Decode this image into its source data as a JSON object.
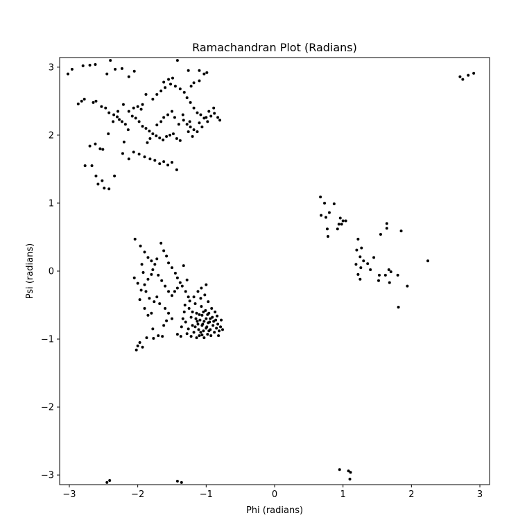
{
  "chart_data": {
    "type": "scatter",
    "title": "Ramachandran Plot (Radians)",
    "xlabel": "Phi (radians)",
    "ylabel": "Psi (radians)",
    "xlim": [
      -3.1416,
      3.1416
    ],
    "ylim": [
      -3.1416,
      3.1416
    ],
    "xticks": [
      -3,
      -2,
      -1,
      0,
      1,
      2,
      3
    ],
    "yticks": [
      -3,
      -2,
      -1,
      0,
      1,
      2,
      3
    ],
    "xtick_labels": [
      "−3",
      "−2",
      "−1",
      "0",
      "1",
      "2",
      "3"
    ],
    "ytick_labels": [
      "−3",
      "−2",
      "−1",
      "0",
      "1",
      "2",
      "3"
    ],
    "grid": false,
    "marker_color": "#000000",
    "series": [
      {
        "points": [
          [
            -3.02,
            2.9
          ],
          [
            -2.96,
            2.97
          ],
          [
            -2.8,
            3.02
          ],
          [
            -2.7,
            3.03
          ],
          [
            -2.62,
            3.04
          ],
          [
            -2.45,
            2.9
          ],
          [
            -2.4,
            3.1
          ],
          [
            -2.33,
            2.97
          ],
          [
            -2.23,
            2.98
          ],
          [
            -2.13,
            2.86
          ],
          [
            -2.05,
            2.94
          ],
          [
            -1.62,
            2.78
          ],
          [
            -1.55,
            2.82
          ],
          [
            -1.49,
            2.84
          ],
          [
            -1.42,
            3.1
          ],
          [
            -1.26,
            2.95
          ],
          [
            -1.1,
            2.95
          ],
          [
            -1.03,
            2.9
          ],
          [
            -0.99,
            2.92
          ],
          [
            -2.87,
            2.46
          ],
          [
            -2.82,
            2.5
          ],
          [
            -2.78,
            2.53
          ],
          [
            -2.65,
            2.48
          ],
          [
            -2.61,
            2.5
          ],
          [
            -2.53,
            2.42
          ],
          [
            -2.47,
            2.4
          ],
          [
            -2.42,
            2.33
          ],
          [
            -2.35,
            2.3
          ],
          [
            -2.3,
            2.27
          ],
          [
            -2.27,
            2.23
          ],
          [
            -2.23,
            2.2
          ],
          [
            -2.18,
            2.16
          ],
          [
            -2.13,
            2.35
          ],
          [
            -2.08,
            2.28
          ],
          [
            -2.03,
            2.25
          ],
          [
            -1.98,
            2.2
          ],
          [
            -1.93,
            2.13
          ],
          [
            -1.88,
            2.1
          ],
          [
            -1.83,
            2.06
          ],
          [
            -1.78,
            2.02
          ],
          [
            -1.73,
            1.99
          ],
          [
            -1.68,
            1.96
          ],
          [
            -1.63,
            1.93
          ],
          [
            -1.58,
            1.98
          ],
          [
            -1.53,
            2.0
          ],
          [
            -1.48,
            2.02
          ],
          [
            -1.43,
            1.95
          ],
          [
            -1.38,
            1.92
          ],
          [
            -1.78,
            2.53
          ],
          [
            -1.72,
            2.6
          ],
          [
            -1.66,
            2.65
          ],
          [
            -1.6,
            2.7
          ],
          [
            -1.52,
            2.75
          ],
          [
            -1.45,
            2.72
          ],
          [
            -1.38,
            2.68
          ],
          [
            -1.32,
            2.63
          ],
          [
            -1.28,
            2.55
          ],
          [
            -1.23,
            2.48
          ],
          [
            -1.18,
            2.4
          ],
          [
            -1.13,
            2.33
          ],
          [
            -1.08,
            2.3
          ],
          [
            -1.03,
            2.25
          ],
          [
            -0.98,
            2.2
          ],
          [
            -0.93,
            2.28
          ],
          [
            -0.88,
            2.32
          ],
          [
            -0.83,
            2.26
          ],
          [
            -0.8,
            2.22
          ],
          [
            -1.33,
            2.22
          ],
          [
            -1.28,
            2.16
          ],
          [
            -1.23,
            2.12
          ],
          [
            -1.18,
            2.08
          ],
          [
            -1.13,
            2.05
          ],
          [
            -1.18,
            2.77
          ],
          [
            -1.1,
            2.8
          ],
          [
            -1.22,
            2.72
          ],
          [
            -1.88,
            2.6
          ],
          [
            -1.93,
            2.45
          ],
          [
            -1.95,
            2.38
          ],
          [
            -2.0,
            2.42
          ],
          [
            -2.06,
            2.4
          ],
          [
            -2.21,
            2.45
          ],
          [
            -2.29,
            2.35
          ],
          [
            -2.36,
            2.2
          ],
          [
            -2.43,
            2.02
          ],
          [
            -2.2,
            1.9
          ],
          [
            -2.14,
            2.08
          ],
          [
            -1.86,
            1.89
          ],
          [
            -1.82,
            1.95
          ],
          [
            -1.72,
            2.15
          ],
          [
            -1.66,
            2.2
          ],
          [
            -1.62,
            2.26
          ],
          [
            -1.56,
            2.3
          ],
          [
            -1.5,
            2.35
          ],
          [
            -1.46,
            2.26
          ],
          [
            -1.4,
            2.16
          ],
          [
            -1.26,
            2.05
          ],
          [
            -1.2,
            1.98
          ],
          [
            -1.34,
            2.3
          ],
          [
            -1.24,
            2.2
          ],
          [
            -1.1,
            2.18
          ],
          [
            -1.06,
            2.12
          ],
          [
            -1.0,
            2.26
          ],
          [
            -0.96,
            2.35
          ],
          [
            -0.89,
            2.4
          ],
          [
            -2.7,
            1.84
          ],
          [
            -2.62,
            1.87
          ],
          [
            -2.55,
            1.8
          ],
          [
            -2.51,
            1.79
          ],
          [
            -2.22,
            1.73
          ],
          [
            -2.13,
            1.65
          ],
          [
            -2.06,
            1.75
          ],
          [
            -1.98,
            1.72
          ],
          [
            -1.9,
            1.68
          ],
          [
            -1.82,
            1.65
          ],
          [
            -1.75,
            1.63
          ],
          [
            -1.68,
            1.58
          ],
          [
            -1.62,
            1.61
          ],
          [
            -1.56,
            1.56
          ],
          [
            -1.5,
            1.6
          ],
          [
            -1.43,
            1.49
          ],
          [
            -2.77,
            1.55
          ],
          [
            -2.67,
            1.55
          ],
          [
            -2.61,
            1.4
          ],
          [
            -2.58,
            1.28
          ],
          [
            -2.52,
            1.33
          ],
          [
            -2.49,
            1.22
          ],
          [
            -2.42,
            1.21
          ],
          [
            -2.34,
            1.4
          ],
          [
            -2.04,
            0.47
          ],
          [
            -1.96,
            0.37
          ],
          [
            -1.9,
            0.28
          ],
          [
            -1.85,
            0.2
          ],
          [
            -1.8,
            0.15
          ],
          [
            -1.75,
            0.1
          ],
          [
            -1.72,
            0.18
          ],
          [
            -1.66,
            0.41
          ],
          [
            -1.62,
            0.3
          ],
          [
            -1.58,
            0.22
          ],
          [
            -1.55,
            0.12
          ],
          [
            -1.5,
            0.05
          ],
          [
            -1.45,
            -0.03
          ],
          [
            -1.42,
            -0.1
          ],
          [
            -1.38,
            -0.17
          ],
          [
            -1.33,
            0.08
          ],
          [
            -1.28,
            -0.13
          ],
          [
            -2.05,
            -0.1
          ],
          [
            -2.0,
            -0.18
          ],
          [
            -1.95,
            -0.28
          ],
          [
            -1.9,
            -0.2
          ],
          [
            -1.85,
            -0.12
          ],
          [
            -1.8,
            -0.05
          ],
          [
            -1.78,
            0.02
          ],
          [
            -1.7,
            -0.06
          ],
          [
            -1.65,
            -0.14
          ],
          [
            -1.6,
            -0.22
          ],
          [
            -1.55,
            -0.3
          ],
          [
            -1.5,
            -0.36
          ],
          [
            -1.46,
            -0.3
          ],
          [
            -1.42,
            -0.25
          ],
          [
            -1.35,
            -0.22
          ],
          [
            -1.3,
            -0.3
          ],
          [
            -1.26,
            -0.38
          ],
          [
            -1.94,
            0.1
          ],
          [
            -1.92,
            -0.02
          ],
          [
            -1.88,
            -0.3
          ],
          [
            -1.83,
            -0.4
          ],
          [
            -1.76,
            -0.45
          ],
          [
            -1.72,
            -0.38
          ],
          [
            -1.68,
            -0.48
          ],
          [
            -1.6,
            -0.55
          ],
          [
            -1.55,
            -0.62
          ],
          [
            -1.5,
            -0.7
          ],
          [
            -1.97,
            -0.42
          ],
          [
            -1.9,
            -0.55
          ],
          [
            -1.85,
            -0.65
          ],
          [
            -1.8,
            -0.62
          ],
          [
            -1.7,
            -0.95
          ],
          [
            -1.64,
            -0.96
          ],
          [
            -1.58,
            -0.73
          ],
          [
            -1.87,
            -0.98
          ],
          [
            -1.77,
            -0.99
          ],
          [
            -1.97,
            -1.05
          ],
          [
            -1.93,
            -1.12
          ],
          [
            -2.0,
            -1.1
          ],
          [
            -2.02,
            -1.16
          ],
          [
            -1.42,
            -0.93
          ],
          [
            -1.37,
            -0.96
          ],
          [
            -1.78,
            -0.85
          ],
          [
            -1.62,
            -0.8
          ],
          [
            -1.32,
            -0.6
          ],
          [
            -1.3,
            -0.75
          ],
          [
            -1.28,
            -0.92
          ],
          [
            -1.25,
            -0.55
          ],
          [
            -1.22,
            -0.68
          ],
          [
            -1.2,
            -0.8
          ],
          [
            -1.18,
            -0.9
          ],
          [
            -1.16,
            -0.48
          ],
          [
            -1.14,
            -0.62
          ],
          [
            -1.13,
            -0.74
          ],
          [
            -1.11,
            -0.86
          ],
          [
            -1.1,
            -0.95
          ],
          [
            -1.08,
            -0.4
          ],
          [
            -1.07,
            -0.52
          ],
          [
            -1.06,
            -0.65
          ],
          [
            -1.05,
            -0.78
          ],
          [
            -1.04,
            -0.88
          ],
          [
            -1.03,
            -0.98
          ],
          [
            -1.02,
            -0.35
          ],
          [
            -1.01,
            -0.58
          ],
          [
            -1.0,
            -0.7
          ],
          [
            -0.99,
            -0.82
          ],
          [
            -0.98,
            -0.93
          ],
          [
            -0.97,
            -0.45
          ],
          [
            -0.96,
            -0.62
          ],
          [
            -0.95,
            -0.75
          ],
          [
            -0.94,
            -0.86
          ],
          [
            -0.93,
            -0.95
          ],
          [
            -0.92,
            -0.55
          ],
          [
            -0.91,
            -0.68
          ],
          [
            -0.9,
            -0.8
          ],
          [
            -0.88,
            -0.9
          ],
          [
            -0.87,
            -0.6
          ],
          [
            -0.86,
            -0.72
          ],
          [
            -0.85,
            -0.84
          ],
          [
            -0.83,
            -0.78
          ],
          [
            -0.81,
            -0.88
          ],
          [
            -0.79,
            -0.82
          ],
          [
            -0.76,
            -0.86
          ],
          [
            -1.12,
            -0.3
          ],
          [
            -1.07,
            -0.25
          ],
          [
            -1.0,
            -0.2
          ],
          [
            -1.18,
            -0.38
          ],
          [
            -1.24,
            -0.44
          ],
          [
            -1.15,
            -0.7
          ],
          [
            -1.09,
            -0.72
          ],
          [
            -1.03,
            -0.74
          ],
          [
            -0.97,
            -0.76
          ],
          [
            -1.12,
            -0.78
          ],
          [
            -1.06,
            -0.8
          ],
          [
            -1.0,
            -0.84
          ],
          [
            -0.94,
            -0.7
          ],
          [
            -0.89,
            -0.74
          ],
          [
            -1.2,
            -0.6
          ],
          [
            -1.1,
            -0.64
          ],
          [
            -1.04,
            -0.6
          ],
          [
            -0.98,
            -0.64
          ],
          [
            -1.26,
            -0.85
          ],
          [
            -1.16,
            -0.82
          ],
          [
            -1.08,
            -0.9
          ],
          [
            -0.96,
            -0.88
          ],
          [
            -1.22,
            -0.96
          ],
          [
            -1.14,
            -0.98
          ],
          [
            -1.06,
            -0.94
          ],
          [
            -1.34,
            -0.7
          ],
          [
            -1.36,
            -0.82
          ],
          [
            -1.31,
            -0.5
          ],
          [
            -0.84,
            -0.66
          ],
          [
            -0.82,
            -0.95
          ],
          [
            -0.78,
            -0.72
          ],
          [
            0.67,
            1.09
          ],
          [
            0.73,
            1.0
          ],
          [
            0.8,
            0.86
          ],
          [
            0.87,
            0.99
          ],
          [
            0.68,
            0.82
          ],
          [
            0.75,
            0.79
          ],
          [
            0.77,
            0.62
          ],
          [
            0.78,
            0.51
          ],
          [
            0.92,
            0.62
          ],
          [
            0.94,
            0.69
          ],
          [
            0.96,
            0.78
          ],
          [
            0.98,
            0.69
          ],
          [
            1.0,
            0.74
          ],
          [
            1.04,
            0.74
          ],
          [
            1.22,
            0.47
          ],
          [
            1.2,
            0.31
          ],
          [
            1.27,
            0.34
          ],
          [
            1.25,
            0.21
          ],
          [
            1.19,
            0.1
          ],
          [
            1.26,
            0.05
          ],
          [
            1.3,
            0.15
          ],
          [
            1.36,
            0.11
          ],
          [
            1.4,
            0.02
          ],
          [
            1.45,
            0.2
          ],
          [
            1.22,
            -0.05
          ],
          [
            1.25,
            -0.12
          ],
          [
            1.55,
            0.54
          ],
          [
            1.64,
            0.7
          ],
          [
            1.64,
            0.63
          ],
          [
            1.85,
            0.59
          ],
          [
            1.53,
            -0.06
          ],
          [
            1.62,
            -0.06
          ],
          [
            1.67,
            0.02
          ],
          [
            1.7,
            -0.01
          ],
          [
            1.52,
            -0.14
          ],
          [
            1.68,
            -0.17
          ],
          [
            1.8,
            -0.06
          ],
          [
            1.94,
            -0.22
          ],
          [
            2.24,
            0.15
          ],
          [
            1.81,
            -0.53
          ],
          [
            2.71,
            2.86
          ],
          [
            2.75,
            2.82
          ],
          [
            2.83,
            2.88
          ],
          [
            2.91,
            2.91
          ],
          [
            0.95,
            -2.92
          ],
          [
            1.08,
            -2.94
          ],
          [
            1.11,
            -2.96
          ],
          [
            1.1,
            -3.06
          ],
          [
            -2.41,
            -3.08
          ],
          [
            -2.45,
            -3.11
          ],
          [
            -1.42,
            -3.09
          ],
          [
            -1.36,
            -3.11
          ]
        ]
      }
    ]
  }
}
